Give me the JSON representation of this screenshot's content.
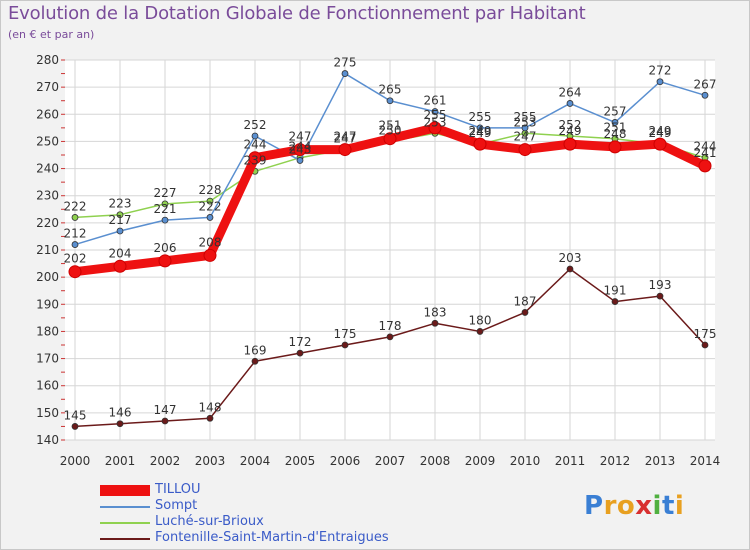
{
  "chart_data": {
    "type": "line",
    "title": "Evolution de la Dotation Globale de Fonctionnement par Habitant",
    "subtitle": "(en € et par an)",
    "xlabel": "",
    "ylabel": "",
    "ylim": [
      140,
      280
    ],
    "yticks": [
      140,
      150,
      160,
      170,
      180,
      190,
      200,
      210,
      220,
      230,
      240,
      250,
      260,
      270,
      280
    ],
    "x": [
      "2000",
      "2001",
      "2002",
      "2003",
      "2004",
      "2005",
      "2006",
      "2007",
      "2008",
      "2009",
      "2010",
      "2011",
      "2012",
      "2013",
      "2014"
    ],
    "grid": true,
    "legend_position": "bottom-left",
    "series": [
      {
        "name": "Fontenille-Saint-Martin-d'Entraigues",
        "color": "#6b1a1a",
        "values": [
          145,
          146,
          147,
          148,
          169,
          172,
          175,
          178,
          183,
          180,
          187,
          203,
          191,
          193,
          175
        ]
      },
      {
        "name": "Luché-sur-Brioux",
        "color": "#8fd14f",
        "values": [
          222,
          223,
          227,
          228,
          239,
          244,
          247,
          250,
          253,
          249,
          253,
          252,
          251,
          249,
          244
        ]
      },
      {
        "name": "Sompt",
        "color": "#5a8fd0",
        "values": [
          212,
          217,
          221,
          222,
          252,
          243,
          275,
          265,
          261,
          255,
          255,
          264,
          257,
          272,
          267
        ]
      },
      {
        "name": "TILLOU",
        "color": "#ee1111",
        "values": [
          202,
          204,
          206,
          208,
          244,
          247,
          247,
          251,
          255,
          249,
          247,
          249,
          248,
          249,
          241
        ]
      }
    ]
  },
  "legend": {
    "items": [
      {
        "label": "TILLOU",
        "color": "#ee1111"
      },
      {
        "label": "Sompt",
        "color": "#5a8fd0"
      },
      {
        "label": "Luché-sur-Brioux",
        "color": "#8fd14f"
      },
      {
        "label": "Fontenille-Saint-Martin-d'Entraigues",
        "color": "#6b1a1a"
      }
    ]
  },
  "logo": {
    "letters": [
      "P",
      "r",
      "o",
      "x",
      "i",
      "t",
      "i"
    ],
    "colors": [
      "#3a7fd4",
      "#e8a020",
      "#e8a020",
      "#d83030",
      "#50b040",
      "#3a7fd4",
      "#e8a020"
    ]
  }
}
